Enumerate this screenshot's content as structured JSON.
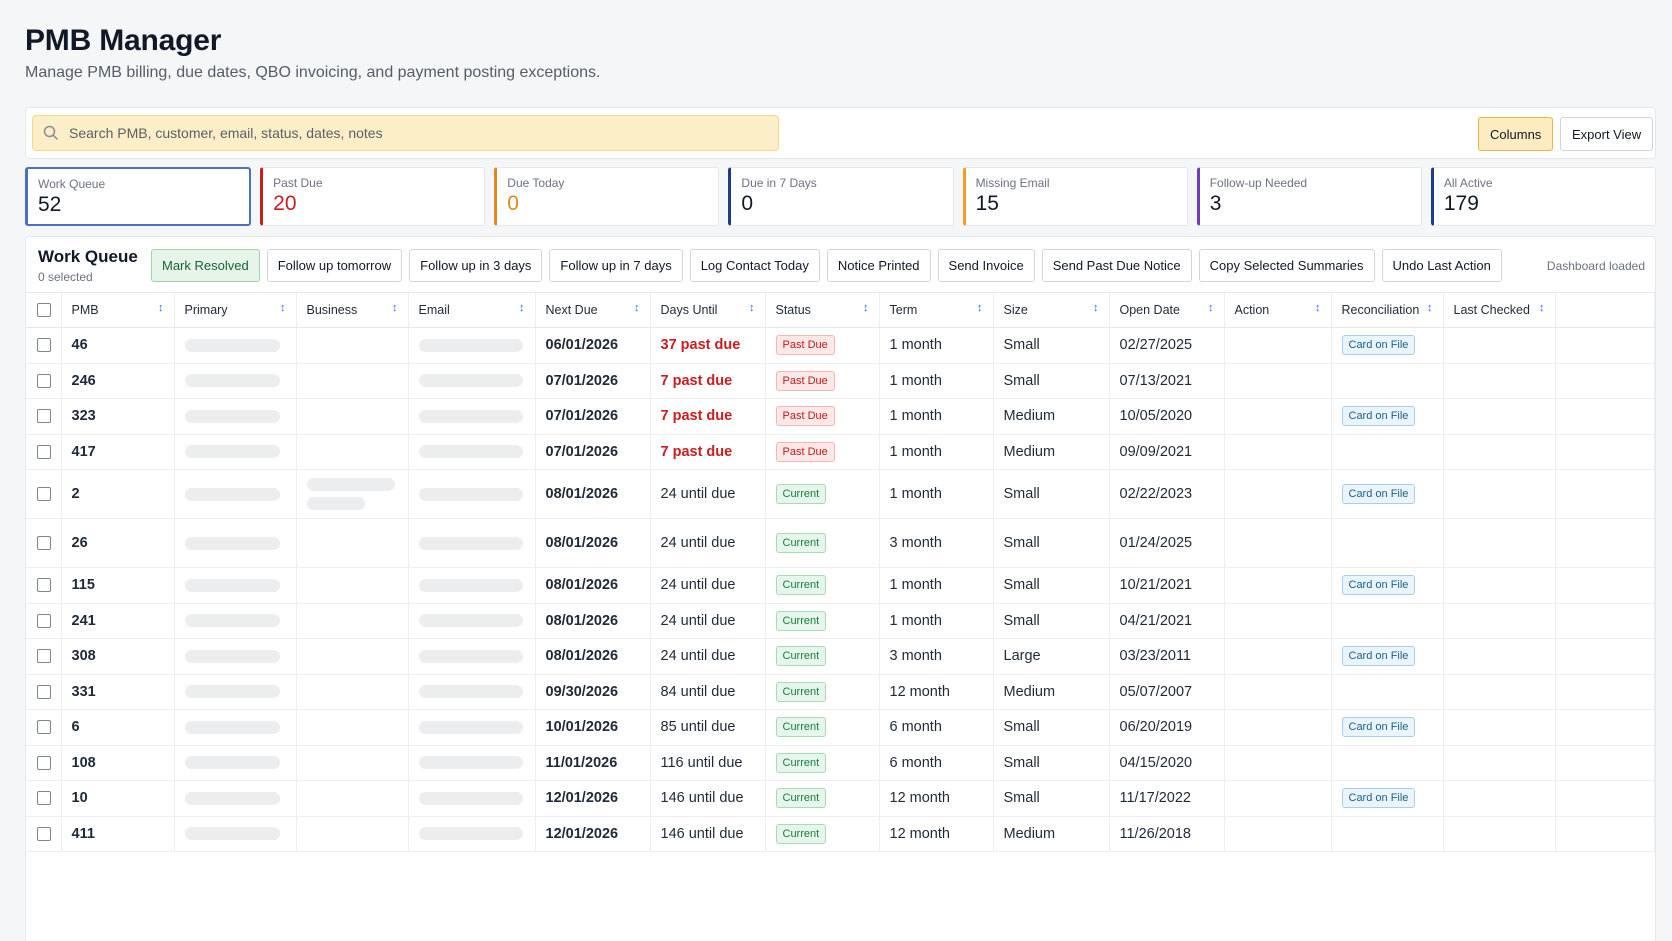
{
  "page": {
    "title": "PMB Manager",
    "subtitle": "Manage PMB billing, due dates, QBO invoicing, and payment posting exceptions."
  },
  "toolbar": {
    "search_placeholder": "Search PMB, customer, email, status, dates, notes",
    "columns_label": "Columns",
    "export_label": "Export View"
  },
  "stats": [
    {
      "label": "Work Queue",
      "value": "52",
      "color": "#4a6fc4",
      "value_color": "#111827"
    },
    {
      "label": "Past Due",
      "value": "20",
      "color": "#c81e1e",
      "value_color": "#c81e1e"
    },
    {
      "label": "Due Today",
      "value": "0",
      "color": "#e08a1e",
      "value_color": "#e08a1e"
    },
    {
      "label": "Due in 7 Days",
      "value": "0",
      "color": "#1e3a8a",
      "value_color": "#111827"
    },
    {
      "label": "Missing Email",
      "value": "15",
      "color": "#f39c2a",
      "value_color": "#111827"
    },
    {
      "label": "Follow-up Needed",
      "value": "3",
      "color": "#6d3fb8",
      "value_color": "#111827"
    },
    {
      "label": "All Active",
      "value": "179",
      "color": "#1e3a8a",
      "value_color": "#111827"
    }
  ],
  "work_queue": {
    "title": "Work Queue",
    "selected": "0 selected",
    "status": "Dashboard loaded",
    "actions": [
      "Mark Resolved",
      "Follow up tomorrow",
      "Follow up in 3 days",
      "Follow up in 7 days",
      "Log Contact Today",
      "Notice Printed",
      "Send Invoice",
      "Send Past Due Notice",
      "Copy Selected Summaries",
      "Undo Last Action"
    ]
  },
  "table": {
    "columns": [
      "PMB",
      "Primary",
      "Business",
      "Email",
      "Next Due",
      "Days Until",
      "Status",
      "Term",
      "Size",
      "Open Date",
      "Action",
      "Reconciliation",
      "Last Checked"
    ],
    "rows": [
      {
        "pmb": "46",
        "next_due": "06/01/2026",
        "days": "37 past due",
        "past": true,
        "status": "Past Due",
        "term": "1 month",
        "size": "Small",
        "open": "02/27/2025",
        "recon": "Card on File",
        "business": false,
        "tall": false
      },
      {
        "pmb": "246",
        "next_due": "07/01/2026",
        "days": "7 past due",
        "past": true,
        "status": "Past Due",
        "term": "1 month",
        "size": "Small",
        "open": "07/13/2021",
        "recon": "",
        "business": false,
        "tall": false
      },
      {
        "pmb": "323",
        "next_due": "07/01/2026",
        "days": "7 past due",
        "past": true,
        "status": "Past Due",
        "term": "1 month",
        "size": "Medium",
        "open": "10/05/2020",
        "recon": "Card on File",
        "business": false,
        "tall": false
      },
      {
        "pmb": "417",
        "next_due": "07/01/2026",
        "days": "7 past due",
        "past": true,
        "status": "Past Due",
        "term": "1 month",
        "size": "Medium",
        "open": "09/09/2021",
        "recon": "",
        "business": false,
        "tall": false
      },
      {
        "pmb": "2",
        "next_due": "08/01/2026",
        "days": "24 until due",
        "past": false,
        "status": "Current",
        "term": "1 month",
        "size": "Small",
        "open": "02/22/2023",
        "recon": "Card on File",
        "business": true,
        "tall": true
      },
      {
        "pmb": "26",
        "next_due": "08/01/2026",
        "days": "24 until due",
        "past": false,
        "status": "Current",
        "term": "3 month",
        "size": "Small",
        "open": "01/24/2025",
        "recon": "",
        "business": false,
        "tall": true
      },
      {
        "pmb": "115",
        "next_due": "08/01/2026",
        "days": "24 until due",
        "past": false,
        "status": "Current",
        "term": "1 month",
        "size": "Small",
        "open": "10/21/2021",
        "recon": "Card on File",
        "business": false,
        "tall": false
      },
      {
        "pmb": "241",
        "next_due": "08/01/2026",
        "days": "24 until due",
        "past": false,
        "status": "Current",
        "term": "1 month",
        "size": "Small",
        "open": "04/21/2021",
        "recon": "",
        "business": false,
        "tall": false
      },
      {
        "pmb": "308",
        "next_due": "08/01/2026",
        "days": "24 until due",
        "past": false,
        "status": "Current",
        "term": "3 month",
        "size": "Large",
        "open": "03/23/2011",
        "recon": "Card on File",
        "business": false,
        "tall": false
      },
      {
        "pmb": "331",
        "next_due": "09/30/2026",
        "days": "84 until due",
        "past": false,
        "status": "Current",
        "term": "12 month",
        "size": "Medium",
        "open": "05/07/2007",
        "recon": "",
        "business": false,
        "tall": false
      },
      {
        "pmb": "6",
        "next_due": "10/01/2026",
        "days": "85 until due",
        "past": false,
        "status": "Current",
        "term": "6 month",
        "size": "Small",
        "open": "06/20/2019",
        "recon": "Card on File",
        "business": false,
        "tall": false
      },
      {
        "pmb": "108",
        "next_due": "11/01/2026",
        "days": "116 until due",
        "past": false,
        "status": "Current",
        "term": "6 month",
        "size": "Small",
        "open": "04/15/2020",
        "recon": "",
        "business": false,
        "tall": false
      },
      {
        "pmb": "10",
        "next_due": "12/01/2026",
        "days": "146 until due",
        "past": false,
        "status": "Current",
        "term": "12 month",
        "size": "Small",
        "open": "11/17/2022",
        "recon": "Card on File",
        "business": false,
        "tall": false
      },
      {
        "pmb": "411",
        "next_due": "12/01/2026",
        "days": "146 until due",
        "past": false,
        "status": "Current",
        "term": "12 month",
        "size": "Medium",
        "open": "11/26/2018",
        "recon": "",
        "business": false,
        "tall": false
      }
    ]
  }
}
